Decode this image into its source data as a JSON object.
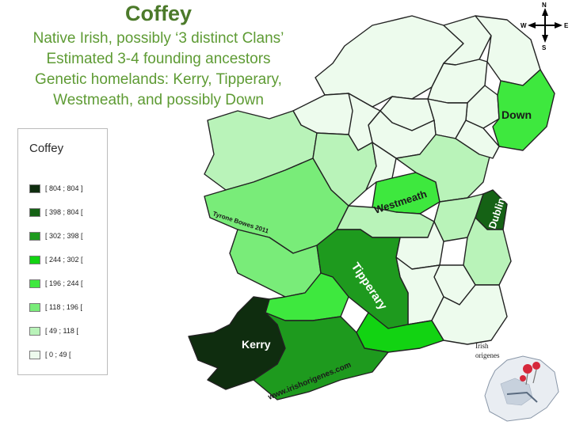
{
  "title": "Coffey",
  "subtitle_lines": [
    "Native Irish, possibly ‘3 distinct Clans’",
    "Estimated 3-4 founding ancestors",
    "Genetic homelands: Kerry, Tipperary,",
    "Westmeath, and possibly Down"
  ],
  "legend": {
    "title": "Coffey",
    "items": [
      {
        "label": "[ 804 ; 804 ]",
        "color": "#0f2d0f"
      },
      {
        "label": "[ 398 ; 804 [",
        "color": "#156215"
      },
      {
        "label": "[ 302 ; 398 [",
        "color": "#1e9a1e"
      },
      {
        "label": "[ 244 ; 302 [",
        "color": "#12d312"
      },
      {
        "label": "[ 196 ; 244 [",
        "color": "#3ee83e"
      },
      {
        "label": "[ 118 ; 196 [",
        "color": "#79ec79"
      },
      {
        "label": "[ 49 ; 118 [",
        "color": "#b9f3b9"
      },
      {
        "label": "[ 0 ; 49 [",
        "color": "#edfbed"
      }
    ]
  },
  "map_labels": {
    "kerry": "Kerry",
    "tipperary": "Tipperary",
    "westmeath": "Westmeath",
    "dublin": "Dublin",
    "down": "Down"
  },
  "credit": "Tyrone Bowes 2011",
  "website": "www.irishorigenes.com",
  "compass": {
    "n": "N",
    "e": "E",
    "s": "S",
    "w": "W"
  },
  "logo_text": [
    "Irish",
    "origenes"
  ]
}
